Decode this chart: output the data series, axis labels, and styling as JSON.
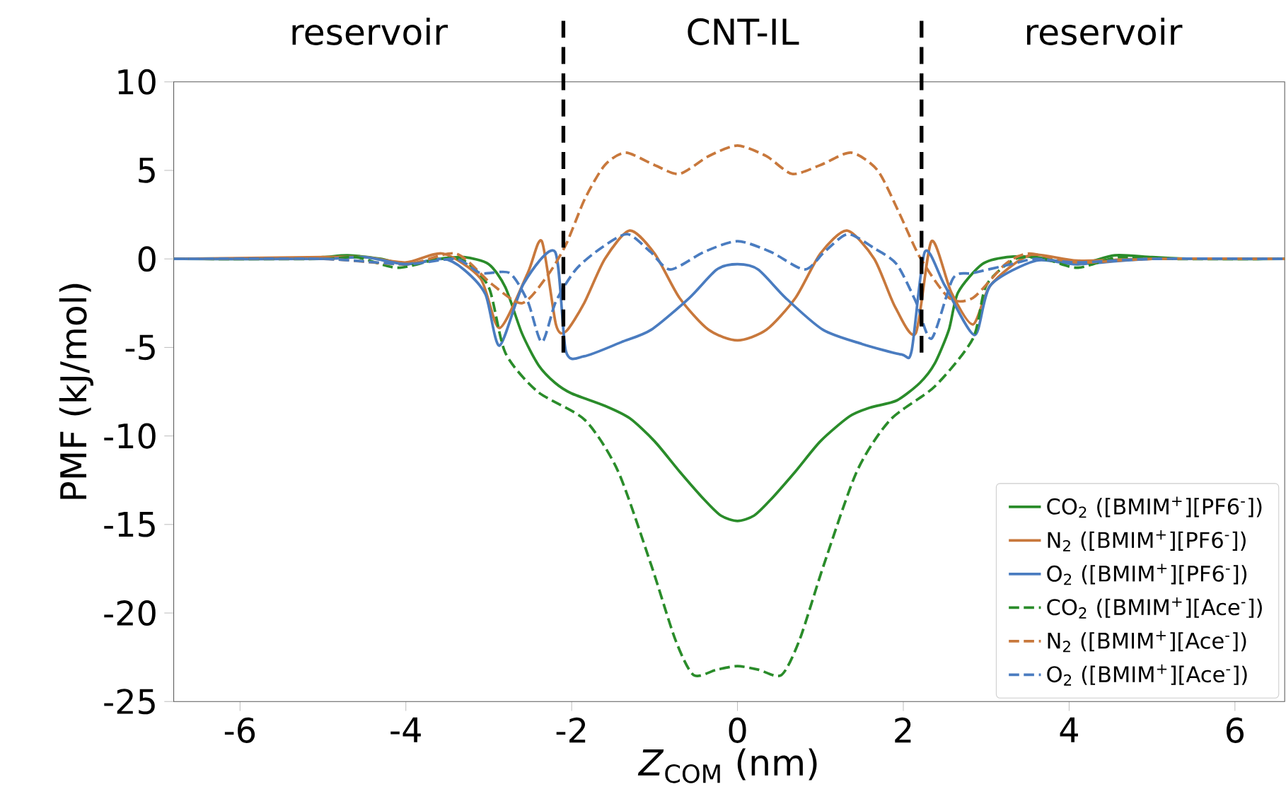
{
  "chart_data": {
    "type": "line",
    "xlabel": "*Z*$_{COM}$ (nm)",
    "ylabel": "PMF (kJ/mol)",
    "xlim": [
      -6.8,
      6.6
    ],
    "ylim": [
      -25,
      10
    ],
    "xticks": [
      -6,
      -4,
      -2,
      0,
      2,
      4,
      6
    ],
    "yticks": [
      -25,
      -20,
      -15,
      -10,
      -5,
      0,
      5,
      10
    ],
    "grid": false,
    "legend": "bottom right",
    "marker": "none",
    "annotations": [
      "reservoir",
      "CNT-IL",
      "reservoir"
    ],
    "ref_lines": [
      {
        "axis": "x",
        "value": -2.1,
        "color": "#000000",
        "line_style": "dashed"
      },
      {
        "axis": "x",
        "value": 2.22,
        "color": "#000000",
        "line_style": "dashed"
      }
    ],
    "series": [
      {
        "name": "CO$_{2}$ ([BMIM$^{+}$][PF6$^{-}$])",
        "color": "#2a8c2a",
        "line_style": "solid",
        "x": [
          -6.8,
          -5.5,
          -5,
          -4.7,
          -4.3,
          -4.0,
          -3.6,
          -3.3,
          -3.0,
          -2.8,
          -2.6,
          -2.4,
          -2.2,
          -2.0,
          -1.6,
          -1.3,
          -1.0,
          -0.7,
          -0.4,
          -0.2,
          0,
          0.2,
          0.4,
          0.7,
          1.0,
          1.35,
          1.6,
          1.92,
          2.2,
          2.38,
          2.55,
          2.66,
          2.95,
          3.25,
          3.6,
          4.1,
          4.55,
          5,
          5.5,
          6.6
        ],
        "values": [
          0,
          0,
          0.1,
          0.2,
          0,
          -0.3,
          0,
          0.1,
          -0.3,
          -1.6,
          -4.2,
          -6.0,
          -7.0,
          -7.6,
          -8.3,
          -9.0,
          -10.3,
          -12.0,
          -13.6,
          -14.5,
          -14.8,
          -14.5,
          -13.6,
          -12.0,
          -10.3,
          -8.9,
          -8.4,
          -8.0,
          -7.0,
          -5.9,
          -4.0,
          -1.9,
          -0.3,
          0.1,
          0.1,
          -0.3,
          0.2,
          0.1,
          0,
          0
        ]
      },
      {
        "name": "N$_{2}$ ([BMIM$^{+}$][PF6$^{-}$])",
        "color": "#c8783c",
        "line_style": "solid",
        "x": [
          -6.8,
          -5,
          -4.5,
          -4.0,
          -3.55,
          -3.1,
          -2.87,
          -2.53,
          -2.36,
          -2.19,
          -2.07,
          -1.85,
          -1.6,
          -1.3,
          -1.0,
          -0.7,
          -0.35,
          0,
          0.35,
          0.7,
          1.0,
          1.32,
          1.65,
          1.9,
          2.15,
          2.34,
          2.58,
          2.84,
          3.05,
          3.52,
          4.1,
          5,
          6.6
        ],
        "values": [
          0,
          0.1,
          0.1,
          -0.2,
          0.3,
          -1.1,
          -3.9,
          -0.8,
          1.0,
          -3.7,
          -4.1,
          -2.5,
          0,
          1.6,
          0.3,
          -2.2,
          -4.0,
          -4.6,
          -4.0,
          -2.2,
          0.3,
          1.6,
          0,
          -2.7,
          -4.2,
          1.0,
          -1.9,
          -3.7,
          -1.5,
          0.2,
          -0.1,
          0,
          0
        ]
      },
      {
        "name": "O$_{2}$ ([BMIM$^{+}$][PF6$^{-}$])",
        "color": "#4a7cc0",
        "line_style": "solid",
        "x": [
          -6.8,
          -5,
          -4.5,
          -4.0,
          -3.55,
          -3.3,
          -3.04,
          -2.87,
          -2.58,
          -2.2,
          -2.07,
          -1.85,
          -1.4,
          -1.04,
          -0.58,
          -0.25,
          0,
          0.25,
          0.58,
          1.03,
          1.5,
          1.98,
          2.1,
          2.26,
          2.5,
          2.86,
          3.05,
          3.6,
          4.1,
          5,
          6.6
        ],
        "values": [
          0,
          0,
          0.1,
          -0.3,
          0,
          -0.6,
          -2.0,
          -4.9,
          -1.4,
          0.4,
          -5.2,
          -5.5,
          -4.7,
          -4.0,
          -2.2,
          -0.6,
          -0.3,
          -0.6,
          -2.2,
          -4.0,
          -4.8,
          -5.4,
          -5.2,
          0.4,
          -1.5,
          -4.3,
          -1.5,
          -0.1,
          -0.3,
          0,
          0
        ]
      },
      {
        "name": "CO$_{2}$ ([BMIM$^{+}$][Ace$^{-}$])",
        "color": "#2a8c2a",
        "line_style": "dashed",
        "x": [
          -6.8,
          -5,
          -4.6,
          -4.1,
          -3.6,
          -3.3,
          -3.0,
          -2.8,
          -2.41,
          -1.84,
          -1.44,
          -1.04,
          -0.75,
          -0.53,
          -0.25,
          0,
          0.25,
          0.53,
          0.75,
          1.04,
          1.44,
          1.84,
          2.38,
          2.84,
          3.0,
          3.35,
          3.7,
          4.1,
          4.6,
          5.2,
          6.6
        ],
        "values": [
          0,
          0,
          0.1,
          -0.5,
          0,
          -0.1,
          -1.6,
          -5.3,
          -7.5,
          -9.1,
          -12.0,
          -17.3,
          -21.5,
          -23.5,
          -23.2,
          -23.0,
          -23.2,
          -23.5,
          -21.5,
          -17.3,
          -12.0,
          -9.1,
          -7.2,
          -4.5,
          -1.5,
          0,
          0,
          -0.5,
          0.1,
          0,
          0
        ]
      },
      {
        "name": "N$_{2}$ ([BMIM$^{+}$][Ace$^{-}$])",
        "color": "#c8783c",
        "line_style": "dashed",
        "x": [
          -6.8,
          -5,
          -4.0,
          -3.4,
          -2.97,
          -2.6,
          -2.3,
          -2.07,
          -1.84,
          -1.6,
          -1.35,
          -1.0,
          -0.7,
          -0.35,
          0,
          0.35,
          0.66,
          1.0,
          1.37,
          1.69,
          1.95,
          2.2,
          2.55,
          2.84,
          3.23,
          3.52,
          4.1,
          5,
          6.6
        ],
        "values": [
          0,
          0,
          -0.3,
          0.3,
          -1.4,
          -2.5,
          -1.0,
          0.8,
          3.4,
          5.3,
          6.0,
          5.3,
          4.8,
          5.8,
          6.4,
          5.8,
          4.8,
          5.3,
          6.0,
          5.0,
          2.6,
          0.1,
          -2.2,
          -2.2,
          -0.3,
          0.3,
          -0.2,
          0,
          0
        ]
      },
      {
        "name": "O$_{2}$ ([BMIM$^{+}$][Ace$^{-}$])",
        "color": "#4a7cc0",
        "line_style": "dashed",
        "x": [
          -6.8,
          -5,
          -4.0,
          -3.4,
          -3.1,
          -2.75,
          -2.53,
          -2.36,
          -2.19,
          -1.95,
          -1.65,
          -1.33,
          -1.05,
          -0.81,
          -0.4,
          0,
          0.4,
          0.81,
          1.05,
          1.33,
          1.65,
          1.92,
          2.15,
          2.34,
          2.6,
          2.84,
          3.3,
          3.6,
          4.1,
          5,
          6.6
        ],
        "values": [
          0,
          0,
          -0.3,
          0,
          -0.8,
          -0.8,
          -2.4,
          -4.7,
          -2.4,
          -0.6,
          0.6,
          1.4,
          0.4,
          -0.6,
          0.4,
          1.0,
          0.4,
          -0.6,
          0.4,
          1.4,
          0.6,
          -0.3,
          -2.4,
          -4.5,
          -1.1,
          -0.8,
          -0.3,
          0,
          -0.2,
          0,
          0
        ]
      }
    ]
  }
}
